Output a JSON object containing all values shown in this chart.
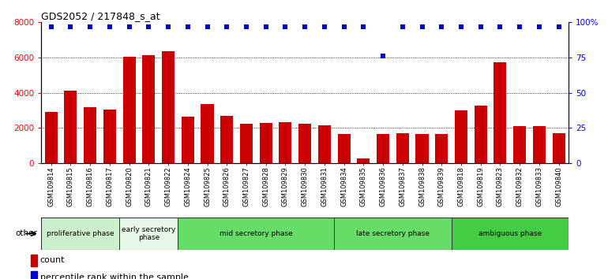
{
  "title": "GDS2052 / 217848_s_at",
  "samples": [
    "GSM109814",
    "GSM109815",
    "GSM109816",
    "GSM109817",
    "GSM109820",
    "GSM109821",
    "GSM109822",
    "GSM109824",
    "GSM109825",
    "GSM109826",
    "GSM109827",
    "GSM109828",
    "GSM109829",
    "GSM109830",
    "GSM109831",
    "GSM109834",
    "GSM109835",
    "GSM109836",
    "GSM109837",
    "GSM109838",
    "GSM109839",
    "GSM109818",
    "GSM109819",
    "GSM109823",
    "GSM109832",
    "GSM109833",
    "GSM109840"
  ],
  "counts": [
    2900,
    4100,
    3200,
    3050,
    6050,
    6150,
    6350,
    2650,
    3350,
    2700,
    2220,
    2300,
    2350,
    2230,
    2150,
    1680,
    280,
    1680,
    1700,
    1650,
    1650,
    3000,
    3250,
    5750,
    2100,
    2100,
    1700
  ],
  "percentiles": [
    97,
    97,
    97,
    97,
    97,
    97,
    97,
    97,
    97,
    97,
    97,
    97,
    97,
    97,
    97,
    97,
    97,
    76,
    97,
    97,
    97,
    97,
    97,
    97,
    97,
    97,
    97
  ],
  "phases": [
    {
      "label": "proliferative phase",
      "start": 0,
      "end": 4,
      "color": "#ccf0cc"
    },
    {
      "label": "early secretory\nphase",
      "start": 4,
      "end": 7,
      "color": "#e8f8e8"
    },
    {
      "label": "mid secretory phase",
      "start": 7,
      "end": 15,
      "color": "#66dd66"
    },
    {
      "label": "late secretory phase",
      "start": 15,
      "end": 21,
      "color": "#66dd66"
    },
    {
      "label": "ambiguous phase",
      "start": 21,
      "end": 27,
      "color": "#44cc44"
    }
  ],
  "bar_color": "#CC0000",
  "dot_color": "#0000CC",
  "ylim_left": [
    0,
    8000
  ],
  "ylim_right": [
    0,
    100
  ],
  "yticks_left": [
    0,
    2000,
    4000,
    6000,
    8000
  ],
  "yticks_right": [
    0,
    25,
    50,
    75,
    100
  ],
  "ytick_labels_right": [
    "0",
    "25",
    "50",
    "75",
    "100%"
  ]
}
